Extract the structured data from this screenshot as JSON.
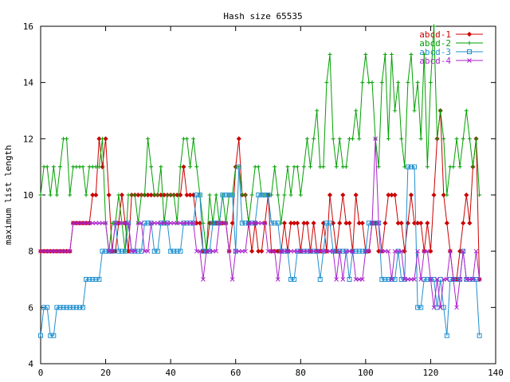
{
  "chart_data": {
    "type": "line",
    "title": "Hash size 65535",
    "xlabel": "",
    "ylabel": "maximum list length",
    "xlim": [
      0,
      140
    ],
    "ylim": [
      4,
      16
    ],
    "xticks": [
      0,
      20,
      40,
      60,
      80,
      100,
      120,
      140
    ],
    "yticks": [
      4,
      6,
      8,
      10,
      12,
      14,
      16
    ],
    "grid": false,
    "legend": "top-right",
    "x_start": 0,
    "series": [
      {
        "name": "abcd-1",
        "color": "#cc0000",
        "marker": "diamond",
        "values": [
          8,
          8,
          8,
          8,
          8,
          8,
          8,
          8,
          8,
          8,
          9,
          9,
          9,
          9,
          9,
          9,
          10,
          10,
          12,
          11,
          12,
          10,
          8,
          8,
          9,
          10,
          9,
          8,
          10,
          10,
          10,
          10,
          10,
          10,
          10,
          10,
          10,
          10,
          10,
          10,
          10,
          10,
          10,
          10,
          11,
          10,
          10,
          10,
          9,
          9,
          8,
          8,
          9,
          9,
          9,
          9,
          9,
          9,
          8,
          9,
          11,
          12,
          10,
          10,
          9,
          8,
          9,
          8,
          8,
          9,
          10,
          8,
          8,
          8,
          8,
          9,
          8,
          9,
          9,
          9,
          8,
          9,
          9,
          8,
          9,
          8,
          8,
          9,
          8,
          10,
          9,
          8,
          9,
          10,
          9,
          9,
          8,
          10,
          9,
          9,
          8,
          8,
          9,
          9,
          8,
          8,
          9,
          10,
          10,
          10,
          9,
          9,
          8,
          9,
          10,
          9,
          9,
          9,
          8,
          9,
          8,
          10,
          12,
          13,
          10,
          9,
          8,
          7,
          7,
          8,
          9,
          10,
          9,
          11,
          12,
          7
        ]
      },
      {
        "name": "abcd-2",
        "color": "#00a000",
        "marker": "plus",
        "values": [
          10,
          11,
          11,
          10,
          11,
          10,
          11,
          12,
          12,
          10,
          11,
          11,
          11,
          11,
          10,
          11,
          11,
          11,
          11,
          12,
          9,
          8,
          9,
          9,
          10,
          9,
          8,
          10,
          10,
          10,
          9,
          10,
          10,
          12,
          11,
          10,
          10,
          11,
          9,
          10,
          10,
          10,
          9,
          11,
          12,
          12,
          11,
          12,
          11,
          10,
          9,
          8,
          10,
          9,
          10,
          9,
          10,
          9,
          10,
          10,
          11,
          11,
          10,
          10,
          9,
          10,
          11,
          11,
          10,
          10,
          10,
          10,
          11,
          10,
          9,
          10,
          11,
          10,
          11,
          11,
          10,
          11,
          12,
          11,
          12,
          13,
          11,
          11,
          14,
          15,
          12,
          11,
          12,
          11,
          11,
          12,
          12,
          13,
          12,
          14,
          15,
          14,
          14,
          12,
          11,
          14,
          15,
          12,
          15,
          13,
          14,
          12,
          11,
          14,
          15,
          13,
          14,
          12,
          15,
          11,
          14,
          16,
          12,
          13,
          12,
          10,
          11,
          11,
          12,
          11,
          12,
          13,
          12,
          11,
          12,
          10
        ]
      },
      {
        "name": "abcd-3",
        "color": "#1f8fcf",
        "marker": "square",
        "values": [
          5,
          6,
          6,
          5,
          5,
          6,
          6,
          6,
          6,
          6,
          6,
          6,
          6,
          6,
          7,
          7,
          7,
          7,
          7,
          8,
          8,
          8,
          8,
          9,
          8,
          8,
          8,
          9,
          8,
          8,
          8,
          8,
          9,
          9,
          9,
          8,
          8,
          9,
          9,
          9,
          8,
          8,
          8,
          8,
          9,
          9,
          9,
          9,
          10,
          10,
          8,
          8,
          8,
          9,
          9,
          9,
          10,
          10,
          10,
          10,
          8,
          11,
          9,
          9,
          9,
          9,
          9,
          10,
          10,
          10,
          10,
          9,
          9,
          9,
          8,
          8,
          8,
          7,
          7,
          8,
          8,
          8,
          8,
          8,
          8,
          8,
          7,
          8,
          9,
          9,
          8,
          8,
          8,
          8,
          8,
          7,
          8,
          8,
          8,
          8,
          8,
          9,
          9,
          9,
          9,
          7,
          7,
          7,
          7,
          7,
          8,
          7,
          7,
          11,
          11,
          11,
          6,
          6,
          7,
          7,
          7,
          7,
          6,
          7,
          6,
          5,
          7,
          7,
          7,
          7,
          8,
          7,
          7,
          7,
          7,
          5
        ]
      },
      {
        "name": "abcd-4",
        "color": "#aa22cc",
        "marker": "cross",
        "values": [
          8,
          8,
          8,
          8,
          8,
          8,
          8,
          8,
          8,
          8,
          9,
          9,
          9,
          9,
          9,
          9,
          9,
          9,
          9,
          9,
          9,
          8,
          8,
          9,
          9,
          9,
          9,
          9,
          8,
          8,
          9,
          9,
          8,
          8,
          9,
          9,
          9,
          9,
          9,
          9,
          9,
          9,
          9,
          9,
          9,
          9,
          9,
          9,
          8,
          8,
          7,
          8,
          8,
          8,
          8,
          9,
          9,
          9,
          8,
          7,
          8,
          8,
          8,
          8,
          9,
          9,
          9,
          9,
          9,
          9,
          8,
          8,
          8,
          7,
          8,
          8,
          8,
          8,
          8,
          8,
          8,
          8,
          8,
          8,
          8,
          8,
          8,
          8,
          8,
          8,
          8,
          7,
          8,
          7,
          8,
          8,
          8,
          7,
          7,
          7,
          8,
          8,
          9,
          12,
          9,
          8,
          8,
          8,
          7,
          8,
          8,
          8,
          7,
          7,
          7,
          7,
          8,
          7,
          8,
          8,
          7,
          6,
          7,
          6,
          7,
          7,
          8,
          7,
          6,
          7,
          8,
          7,
          7,
          7,
          8,
          7
        ]
      }
    ]
  }
}
